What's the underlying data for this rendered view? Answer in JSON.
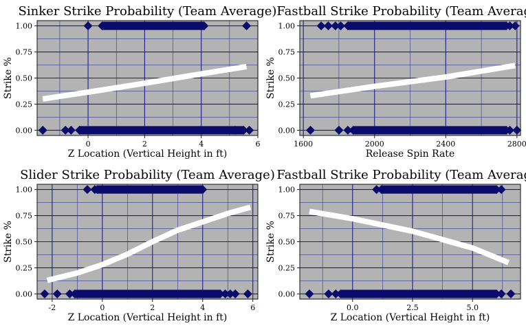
{
  "colors": {
    "panel_background": "#b3b3b3",
    "grid": "#1c1c8c",
    "points": "#0b0b6b",
    "fit_line": "#ffffff"
  },
  "chart_data": [
    {
      "type": "scatter",
      "title": "Sinker Strike Probability (Team Average)",
      "xlabel": "Z Location (Vertical Height in ft)",
      "ylabel": "Strike %",
      "xlim": [
        -1.8,
        6.0
      ],
      "ylim": [
        -0.05,
        1.05
      ],
      "xticks": [
        0,
        2,
        4,
        6
      ],
      "yticks": [
        0.0,
        0.25,
        0.5,
        0.75,
        1.0
      ],
      "ytick_labels": [
        "0.00",
        "0.25",
        "0.50",
        "0.75",
        "1.00"
      ],
      "grid": true,
      "series": [
        {
          "kind": "points",
          "x": [
            -1.6,
            -0.8,
            -0.6,
            -0.3,
            5.2,
            5.7
          ],
          "y": [
            0,
            0,
            0,
            0,
            0,
            0
          ],
          "band": [
            -0.3,
            5.5
          ],
          "band_y": 0
        },
        {
          "kind": "points",
          "x": [
            0.0,
            5.6
          ],
          "y": [
            1,
            1
          ],
          "band": [
            0.5,
            4.1
          ],
          "band_y": 1
        },
        {
          "kind": "fit",
          "x": [
            -1.6,
            0,
            2,
            4,
            5.6
          ],
          "y": [
            0.3,
            0.365,
            0.45,
            0.54,
            0.61
          ]
        }
      ]
    },
    {
      "type": "scatter",
      "title": "Fastball Strike Probability (Team Average)",
      "xlabel": "Release Spin Rate",
      "ylabel": "Strike %",
      "xlim": [
        1580,
        2820
      ],
      "ylim": [
        -0.05,
        1.05
      ],
      "xticks": [
        1600,
        2000,
        2400,
        2800
      ],
      "yticks": [
        0.0,
        0.25,
        0.5,
        0.75,
        1.0
      ],
      "ytick_labels": [
        "0.00",
        "0.25",
        "0.50",
        "0.75",
        "1.00"
      ],
      "grid": true,
      "series": [
        {
          "kind": "points",
          "x": [
            1640,
            1800,
            1850,
            2760,
            2800
          ],
          "y": [
            0,
            0,
            0,
            0,
            0
          ],
          "band": [
            1880,
            2740
          ],
          "band_y": 0
        },
        {
          "kind": "points",
          "x": [
            1700,
            1740,
            1780,
            1810,
            2760,
            2790
          ],
          "y": [
            1,
            1,
            1,
            1,
            1,
            1
          ],
          "band": [
            1850,
            2740
          ],
          "band_y": 1
        },
        {
          "kind": "fit",
          "x": [
            1640,
            2000,
            2400,
            2790
          ],
          "y": [
            0.33,
            0.42,
            0.51,
            0.62
          ]
        }
      ]
    },
    {
      "type": "scatter",
      "title": "Slider Strike Probability (Team Average)",
      "xlabel": "Z Location (Vertical Height in ft)",
      "ylabel": "Strike %",
      "xlim": [
        -2.6,
        6.2
      ],
      "ylim": [
        -0.05,
        1.05
      ],
      "xticks": [
        -2,
        0,
        2,
        4,
        6
      ],
      "yticks": [
        0.0,
        0.25,
        0.5,
        0.75,
        1.0
      ],
      "ytick_labels": [
        "0.00",
        "0.25",
        "0.50",
        "0.75",
        "1.00"
      ],
      "grid": true,
      "series": [
        {
          "kind": "points",
          "x": [
            -2.3,
            -1.8,
            -1.3,
            4.9,
            5.1,
            5.3,
            5.8
          ],
          "y": [
            0,
            0,
            0,
            0,
            0,
            0,
            0
          ],
          "band": [
            -1.1,
            4.7
          ],
          "band_y": 0
        },
        {
          "kind": "points",
          "x": [
            -0.6,
            -0.3
          ],
          "y": [
            1,
            1
          ],
          "band": [
            -0.2,
            4.0
          ],
          "band_y": 1
        },
        {
          "kind": "fit",
          "x": [
            -2.2,
            -1,
            0,
            1,
            2,
            3,
            4,
            5,
            5.9
          ],
          "y": [
            0.13,
            0.2,
            0.28,
            0.38,
            0.5,
            0.61,
            0.69,
            0.77,
            0.83
          ]
        }
      ]
    },
    {
      "type": "scatter",
      "title": "Fastball Strike Probability (Team Average)",
      "xlabel": "Z Location (Vertical Height in ft)",
      "ylabel": "Strike %",
      "xlim": [
        -2.2,
        7.0
      ],
      "ylim": [
        -0.05,
        1.05
      ],
      "xticks": [
        0.0,
        2.5,
        5.0
      ],
      "xtick_labels": [
        "0.0",
        "2.5",
        "5.0"
      ],
      "yticks": [
        0.0,
        0.25,
        0.5,
        0.75,
        1.0
      ],
      "ytick_labels": [
        "0.00",
        "0.25",
        "0.50",
        "0.75",
        "1.00"
      ],
      "grid": true,
      "series": [
        {
          "kind": "points",
          "x": [
            -1.8,
            -1.0,
            -0.7,
            6.2,
            6.6
          ],
          "y": [
            0,
            0,
            0,
            0,
            0
          ],
          "band": [
            -0.5,
            6.0
          ],
          "band_y": 0
        },
        {
          "kind": "points",
          "x": [
            1.0,
            6.2
          ],
          "y": [
            1,
            1
          ],
          "band": [
            1.2,
            6.0
          ],
          "band_y": 1
        },
        {
          "kind": "fit",
          "x": [
            -1.8,
            0,
            2.5,
            5.0,
            6.5
          ],
          "y": [
            0.79,
            0.72,
            0.6,
            0.44,
            0.3
          ]
        }
      ]
    }
  ]
}
